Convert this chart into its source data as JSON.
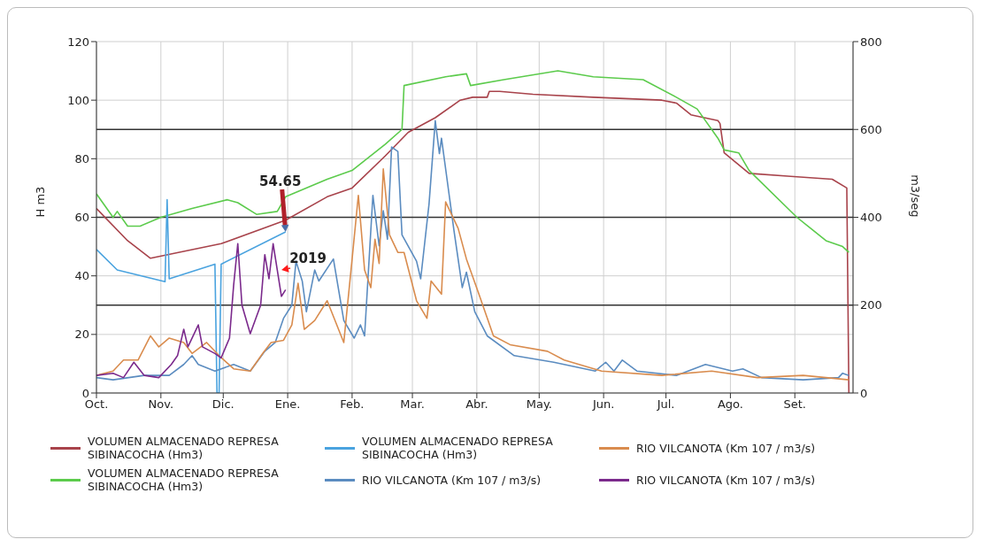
{
  "chart_data": {
    "type": "line",
    "ylabel": "H m3",
    "y2label": "m3/seg",
    "xlim": [
      "2019-10-01",
      "2020-09-29"
    ],
    "xticks": [
      {
        "value": "2019-10-01",
        "label": "Oct."
      },
      {
        "value": "2019-11-01",
        "label": "Nov."
      },
      {
        "value": "2019-12-01",
        "label": "Dic."
      },
      {
        "value": "2020-01-01",
        "label": "Ene."
      },
      {
        "value": "2020-02-01",
        "label": "Feb."
      },
      {
        "value": "2020-03-01",
        "label": "Mar."
      },
      {
        "value": "2020-04-01",
        "label": "Abr."
      },
      {
        "value": "2020-05-01",
        "label": "May."
      },
      {
        "value": "2020-06-01",
        "label": "Jun."
      },
      {
        "value": "2020-07-01",
        "label": "Jul."
      },
      {
        "value": "2020-08-01",
        "label": "Ago."
      },
      {
        "value": "2020-09-01",
        "label": "Set."
      }
    ],
    "ylim": [
      0,
      120
    ],
    "yticks": [
      0,
      20,
      40,
      60,
      80,
      100,
      120
    ],
    "y2lim": [
      0,
      800
    ],
    "y2ticks": [
      0,
      200,
      400,
      600,
      800
    ],
    "grid": true,
    "legend": "bottom",
    "annotations": [
      {
        "text": "54.65",
        "x": "2019-12-31",
        "y": 55
      },
      {
        "text": "2019",
        "x": "2019-12-29",
        "y": 42
      }
    ],
    "series": [
      {
        "name": "VOLUMEN ALMACENADO REPRESA SIBINACOCHA (Hm3)",
        "color": "#a8434b",
        "x": [
          "2019-10-01",
          "2019-10-16",
          "2019-10-27",
          "2019-11-30",
          "2019-12-31",
          "2020-01-20",
          "2020-02-01",
          "2020-02-17",
          "2020-02-28",
          "2020-03-12",
          "2020-03-24",
          "2020-03-30",
          "2020-04-06",
          "2020-04-07",
          "2020-04-12",
          "2020-04-28",
          "2020-05-27",
          "2020-06-29",
          "2020-07-06",
          "2020-07-13",
          "2020-07-26",
          "2020-07-27",
          "2020-07-29",
          "2020-08-10",
          "2020-08-30",
          "2020-09-19",
          "2020-09-26",
          "2020-09-27"
        ],
        "values": [
          63,
          52,
          46,
          51,
          59,
          67,
          70,
          81,
          89,
          94,
          100,
          101,
          101,
          103,
          103,
          102,
          101,
          100,
          99,
          95,
          93,
          92,
          82,
          75,
          74,
          73,
          70,
          0
        ]
      },
      {
        "name": "VOLUMEN ALMACENADO REPRESA SIBINACOCHA (Hm3)",
        "color": "#5ccb4c",
        "x": [
          "2019-10-01",
          "2019-10-09",
          "2019-10-11",
          "2019-10-16",
          "2019-10-22",
          "2019-11-01",
          "2019-11-16",
          "2019-12-03",
          "2019-12-08",
          "2019-12-17",
          "2019-12-27",
          "2019-12-31",
          "2020-01-20",
          "2020-02-01",
          "2020-02-17",
          "2020-02-25",
          "2020-02-26",
          "2020-03-17",
          "2020-03-27",
          "2020-03-29",
          "2020-04-14",
          "2020-05-10",
          "2020-05-27",
          "2020-06-20",
          "2020-07-06",
          "2020-07-16",
          "2020-07-26",
          "2020-07-29",
          "2020-08-05",
          "2020-08-10",
          "2020-09-02",
          "2020-09-16",
          "2020-09-24",
          "2020-09-27"
        ],
        "values": [
          68,
          60,
          62,
          57,
          57,
          60,
          63,
          66,
          65,
          61,
          62,
          67,
          73,
          76,
          85,
          90,
          105,
          108,
          109,
          105,
          107,
          110,
          108,
          107,
          101,
          97,
          87,
          83,
          82,
          76,
          60,
          52,
          50,
          48
        ]
      },
      {
        "name": "VOLUMEN ALMACENADO REPRESA SIBINACOCHA (Hm3)",
        "color": "#4aa3df",
        "x": [
          "2019-10-01",
          "2019-10-11",
          "2019-11-03",
          "2019-11-04",
          "2019-11-05",
          "2019-11-27",
          "2019-11-28",
          "2019-11-29",
          "2019-11-30",
          "2019-12-31"
        ],
        "values": [
          49,
          42,
          38,
          66,
          39,
          44,
          0,
          0,
          44,
          55
        ]
      },
      {
        "name": "RIO VILCANOTA (Km 107 / m3/s)",
        "color": "#5b8cc0",
        "axis": "y2",
        "x": [
          "2019-10-01",
          "2019-10-09",
          "2019-10-24",
          "2019-11-05",
          "2019-11-12",
          "2019-11-16",
          "2019-11-19",
          "2019-11-27",
          "2019-12-06",
          "2019-12-14",
          "2019-12-21",
          "2019-12-26",
          "2019-12-30",
          "2020-01-03",
          "2020-01-05",
          "2020-01-08",
          "2020-01-10",
          "2020-01-14",
          "2020-01-16",
          "2020-01-23",
          "2020-01-28",
          "2020-02-02",
          "2020-02-05",
          "2020-02-07",
          "2020-02-11",
          "2020-02-14",
          "2020-02-16",
          "2020-02-18",
          "2020-02-20",
          "2020-02-23",
          "2020-02-25",
          "2020-03-03",
          "2020-03-05",
          "2020-03-09",
          "2020-03-12",
          "2020-03-14",
          "2020-03-15",
          "2020-03-21",
          "2020-03-25",
          "2020-03-27",
          "2020-03-31",
          "2020-04-06",
          "2020-04-19",
          "2020-05-08",
          "2020-05-28",
          "2020-06-02",
          "2020-06-06",
          "2020-06-10",
          "2020-06-17",
          "2020-07-06",
          "2020-07-20",
          "2020-08-02",
          "2020-08-07",
          "2020-08-16",
          "2020-09-05",
          "2020-09-22",
          "2020-09-24",
          "2020-09-27"
        ],
        "values": [
          35,
          30,
          40,
          40,
          65,
          85,
          65,
          50,
          65,
          50,
          95,
          115,
          170,
          200,
          300,
          255,
          185,
          280,
          255,
          305,
          165,
          125,
          155,
          130,
          450,
          335,
          415,
          350,
          560,
          550,
          360,
          300,
          260,
          430,
          620,
          545,
          580,
          370,
          240,
          275,
          185,
          130,
          85,
          70,
          50,
          70,
          50,
          75,
          50,
          40,
          65,
          50,
          55,
          35,
          30,
          35,
          45,
          40
        ]
      },
      {
        "name": "RIO VILCANOTA (Km 107 / m3/s)",
        "color": "#d98c4e",
        "axis": "y2",
        "x": [
          "2019-10-01",
          "2019-10-09",
          "2019-10-14",
          "2019-10-21",
          "2019-10-27",
          "2019-10-31",
          "2019-11-05",
          "2019-11-12",
          "2019-11-16",
          "2019-11-23",
          "2019-11-29",
          "2019-12-06",
          "2019-12-14",
          "2019-12-20",
          "2019-12-24",
          "2019-12-30",
          "2020-01-03",
          "2020-01-06",
          "2020-01-09",
          "2020-01-14",
          "2020-01-20",
          "2020-01-28",
          "2020-02-01",
          "2020-02-04",
          "2020-02-07",
          "2020-02-10",
          "2020-02-12",
          "2020-02-14",
          "2020-02-16",
          "2020-02-19",
          "2020-02-23",
          "2020-02-26",
          "2020-03-03",
          "2020-03-08",
          "2020-03-10",
          "2020-03-15",
          "2020-03-17",
          "2020-03-23",
          "2020-03-27",
          "2020-04-02",
          "2020-04-09",
          "2020-04-17",
          "2020-05-05",
          "2020-05-13",
          "2020-05-31",
          "2020-06-29",
          "2020-07-23",
          "2020-08-14",
          "2020-09-05",
          "2020-09-27"
        ],
        "values": [
          40,
          50,
          75,
          75,
          130,
          105,
          125,
          115,
          90,
          115,
          85,
          55,
          50,
          90,
          115,
          120,
          155,
          250,
          145,
          165,
          210,
          115,
          305,
          450,
          280,
          240,
          350,
          295,
          510,
          360,
          320,
          320,
          210,
          170,
          255,
          225,
          435,
          375,
          305,
          225,
          130,
          110,
          95,
          75,
          50,
          40,
          50,
          35,
          40,
          30
        ]
      },
      {
        "name": "RIO VILCANOTA (Km 107 / m3/s)",
        "color": "#7b2a8c",
        "axis": "y2",
        "x": [
          "2019-10-01",
          "2019-10-09",
          "2019-10-14",
          "2019-10-19",
          "2019-10-24",
          "2019-10-31",
          "2019-11-06",
          "2019-11-09",
          "2019-11-12",
          "2019-11-14",
          "2019-11-19",
          "2019-11-21",
          "2019-11-27",
          "2019-11-30",
          "2019-12-04",
          "2019-12-06",
          "2019-12-08",
          "2019-12-10",
          "2019-12-14",
          "2019-12-19",
          "2019-12-21",
          "2019-12-23",
          "2019-12-25",
          "2019-12-27",
          "2019-12-29",
          "2019-12-31"
        ],
        "values": [
          40,
          45,
          35,
          70,
          40,
          35,
          65,
          85,
          145,
          105,
          155,
          105,
          90,
          80,
          125,
          245,
          340,
          200,
          135,
          200,
          315,
          260,
          340,
          280,
          220,
          235
        ]
      }
    ]
  }
}
